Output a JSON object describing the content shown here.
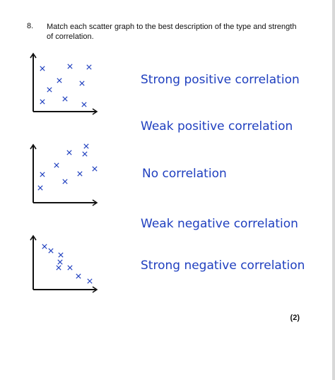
{
  "question": {
    "number": "8.",
    "text": "Match each scatter graph to the best description of the type and strength of correlation."
  },
  "graphs": [
    {
      "label": "graph-a",
      "points": [
        [
          60,
          97
        ],
        [
          99,
          94
        ],
        [
          126,
          95
        ],
        [
          84,
          114
        ],
        [
          116,
          118
        ],
        [
          70,
          127
        ],
        [
          92,
          140
        ],
        [
          60,
          144
        ],
        [
          119,
          148
        ]
      ],
      "axis_origin": [
        47,
        158
      ],
      "axis_top": 76,
      "axis_right": 137
    },
    {
      "label": "graph-b",
      "points": [
        [
          122,
          207
        ],
        [
          98,
          216
        ],
        [
          120,
          218
        ],
        [
          80,
          234
        ],
        [
          134,
          239
        ],
        [
          60,
          247
        ],
        [
          113,
          246
        ],
        [
          92,
          257
        ],
        [
          57,
          266
        ]
      ],
      "axis_origin": [
        47,
        287
      ],
      "axis_top": 205,
      "axis_right": 137
    },
    {
      "label": "graph-c",
      "points": [
        [
          63,
          349
        ],
        [
          72,
          355
        ],
        [
          86,
          361
        ],
        [
          85,
          371
        ],
        [
          83,
          379
        ],
        [
          99,
          379
        ],
        [
          111,
          391
        ],
        [
          127,
          398
        ]
      ],
      "axis_origin": [
        47,
        410
      ],
      "axis_top": 334,
      "axis_right": 137
    }
  ],
  "options": [
    "Strong positive correlation",
    "Weak positive correlation",
    "No correlation",
    "Weak negative correlation",
    "Strong negative correlation"
  ],
  "marks": "(2)",
  "colors": {
    "accent": "#1f3fbf",
    "axis": "#111111"
  }
}
